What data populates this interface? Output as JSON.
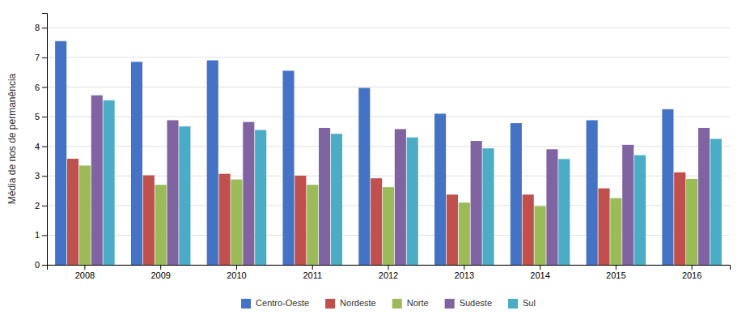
{
  "chart_data": {
    "type": "bar",
    "categories": [
      "2008",
      "2009",
      "2010",
      "2011",
      "2012",
      "2013",
      "2014",
      "2015",
      "2016"
    ],
    "series": [
      {
        "name": "Centro-Oeste",
        "color": "#4472C4",
        "values": [
          7.55,
          6.85,
          6.9,
          6.55,
          5.97,
          5.1,
          4.78,
          4.88,
          5.25
        ]
      },
      {
        "name": "Nordeste",
        "color": "#C0504D",
        "values": [
          3.58,
          3.02,
          3.07,
          3.01,
          2.92,
          2.37,
          2.37,
          2.58,
          3.12
        ]
      },
      {
        "name": "Norte",
        "color": "#9BBB59",
        "values": [
          3.35,
          2.7,
          2.88,
          2.7,
          2.62,
          2.1,
          1.98,
          2.25,
          2.9
        ]
      },
      {
        "name": "Sudeste",
        "color": "#8064A2",
        "values": [
          5.72,
          4.88,
          4.82,
          4.62,
          4.58,
          4.18,
          3.9,
          4.05,
          4.62
        ]
      },
      {
        "name": "Sul",
        "color": "#4BACC6",
        "values": [
          5.55,
          4.67,
          4.55,
          4.42,
          4.3,
          3.93,
          3.57,
          3.7,
          4.25
        ]
      }
    ],
    "ylabel": "Média de nos de permanência",
    "ylim": [
      0,
      8.5
    ],
    "yticks": [
      0,
      1,
      2,
      3,
      4,
      5,
      6,
      7,
      8
    ],
    "grid": true,
    "legend": "bottom"
  }
}
